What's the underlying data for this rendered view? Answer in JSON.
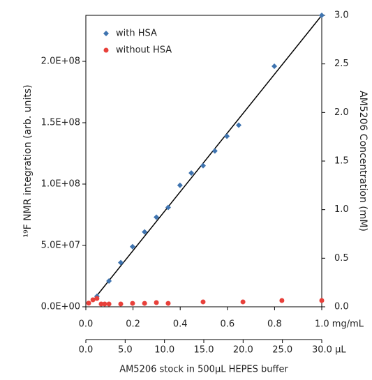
{
  "chart_data": {
    "type": "scatter",
    "xlabel": "AM5206 stock in 500µL HEPES buffer",
    "ylabel": "¹⁹F NMR integration (arb. units)",
    "y2label": "AM5206 Concentration (mM)",
    "xlim": [
      0,
      1.0
    ],
    "xticks": [
      {
        "value": 0,
        "label": "0.0"
      },
      0.2,
      0.4,
      0.6,
      0.8,
      {
        "value": 1.0,
        "label": "1.0 mg/mL"
      }
    ],
    "x2lim": [
      0,
      30
    ],
    "x2ticks": [
      {
        "value": 0,
        "label": "0.0"
      },
      {
        "value": 5,
        "label": "5.0"
      },
      {
        "value": 10,
        "label": "10.0"
      },
      {
        "value": 15,
        "label": "15.0"
      },
      {
        "value": 20,
        "label": "20.0"
      },
      {
        "value": 25,
        "label": "25.0"
      },
      {
        "value": 30,
        "label": "30.0 µL"
      }
    ],
    "ylim": [
      0,
      237500000
    ],
    "yticks": [
      {
        "value": 0,
        "label": "0.0E+00"
      },
      {
        "value": 50000000,
        "label": "5.0E+07"
      },
      {
        "value": 100000000,
        "label": "1.0E+08"
      },
      {
        "value": 150000000,
        "label": "1.5E+08"
      },
      {
        "value": 200000000,
        "label": "2.0E+08"
      }
    ],
    "y2lim": [
      0,
      3.0
    ],
    "y2ticks": [
      {
        "value": 0,
        "label": "0.0"
      },
      0.5,
      {
        "value": 1,
        "label": "1.0"
      },
      1.5,
      {
        "value": 2,
        "label": "2.0"
      },
      2.5,
      {
        "value": 3,
        "label": "3.0"
      }
    ],
    "legend": "upper left",
    "series": [
      {
        "name": "with HSA",
        "color": "#3f74b0",
        "marker": "diamond",
        "x": [
          0.047,
          0.098,
          0.148,
          0.198,
          0.249,
          0.299,
          0.349,
          0.399,
          0.447,
          0.497,
          0.547,
          0.598,
          0.648,
          0.799,
          1.0
        ],
        "values": [
          8500000,
          21000000,
          36000000,
          49000000,
          61000000,
          73000000,
          81000000,
          99000000,
          109000000,
          115000000,
          127000000,
          139000000,
          148000000,
          196000000,
          237500000
        ]
      },
      {
        "name": "without HSA",
        "color": "#e8403a",
        "marker": "circle",
        "x": [
          0.012,
          0.03,
          0.047,
          0.065,
          0.08,
          0.098,
          0.148,
          0.198,
          0.249,
          0.299,
          0.349,
          0.497,
          0.666,
          0.831,
          1.0
        ],
        "values": [
          3000000,
          5700000,
          6800000,
          2300000,
          2300000,
          2300000,
          2300000,
          2800000,
          2800000,
          3400000,
          2800000,
          4000000,
          4000000,
          5100000,
          5100000
        ]
      }
    ]
  }
}
